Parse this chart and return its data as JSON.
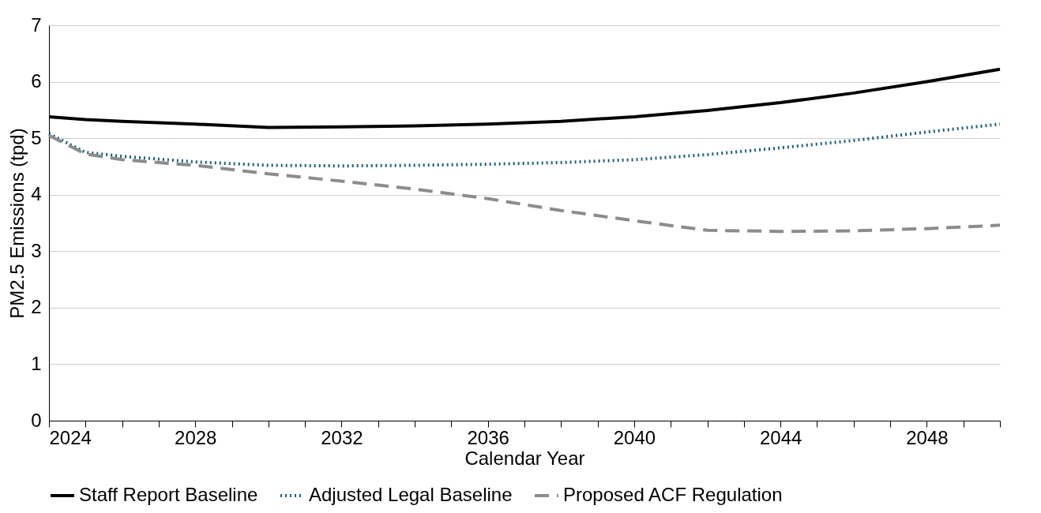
{
  "chart_data": {
    "type": "line",
    "xlabel": "Calendar Year",
    "ylabel": "PM2.5 Emissions (tpd)",
    "xlim": [
      2024,
      2050
    ],
    "ylim": [
      0,
      7
    ],
    "xticks": [
      2024,
      {
        "value": 2025,
        "label": null
      },
      {
        "value": 2026,
        "label": null
      },
      {
        "value": 2027,
        "label": null
      },
      2028,
      {
        "value": 2029,
        "label": null
      },
      {
        "value": 2030,
        "label": null
      },
      {
        "value": 2031,
        "label": null
      },
      2032,
      {
        "value": 2033,
        "label": null
      },
      {
        "value": 2034,
        "label": null
      },
      {
        "value": 2035,
        "label": null
      },
      2036,
      {
        "value": 2037,
        "label": null
      },
      {
        "value": 2038,
        "label": null
      },
      {
        "value": 2039,
        "label": null
      },
      2040,
      {
        "value": 2041,
        "label": null
      },
      {
        "value": 2042,
        "label": null
      },
      {
        "value": 2043,
        "label": null
      },
      2044,
      {
        "value": 2045,
        "label": null
      },
      {
        "value": 2046,
        "label": null
      },
      {
        "value": 2047,
        "label": null
      },
      2048,
      {
        "value": 2049,
        "label": null
      },
      {
        "value": 2050,
        "label": null
      }
    ],
    "yticks": [
      0,
      1,
      2,
      3,
      4,
      5,
      6,
      7
    ],
    "grid": "y",
    "legend": "bottom",
    "x": [
      2024,
      2025,
      2026,
      2028,
      2030,
      2032,
      2034,
      2036,
      2038,
      2040,
      2042,
      2044,
      2046,
      2048,
      2050
    ],
    "series": [
      {
        "name": "Staff Report Baseline",
        "color": "#000000",
        "line_style": "solid",
        "values": [
          5.38,
          5.33,
          5.3,
          5.25,
          5.19,
          5.2,
          5.22,
          5.25,
          5.3,
          5.38,
          5.49,
          5.63,
          5.8,
          6.0,
          6.22
        ]
      },
      {
        "name": "Adjusted Legal Baseline",
        "color": "#1f5f7a",
        "line_style": "dotted",
        "values": [
          5.08,
          4.75,
          4.68,
          4.58,
          4.52,
          4.51,
          4.52,
          4.54,
          4.57,
          4.62,
          4.71,
          4.83,
          4.96,
          5.11,
          5.25
        ]
      },
      {
        "name": "Proposed ACF Regulation",
        "color": "#8c8c8c",
        "line_style": "dashed",
        "values": [
          5.05,
          4.72,
          4.62,
          4.52,
          4.37,
          4.24,
          4.1,
          3.93,
          3.72,
          3.54,
          3.37,
          3.35,
          3.36,
          3.4,
          3.46
        ]
      }
    ]
  }
}
